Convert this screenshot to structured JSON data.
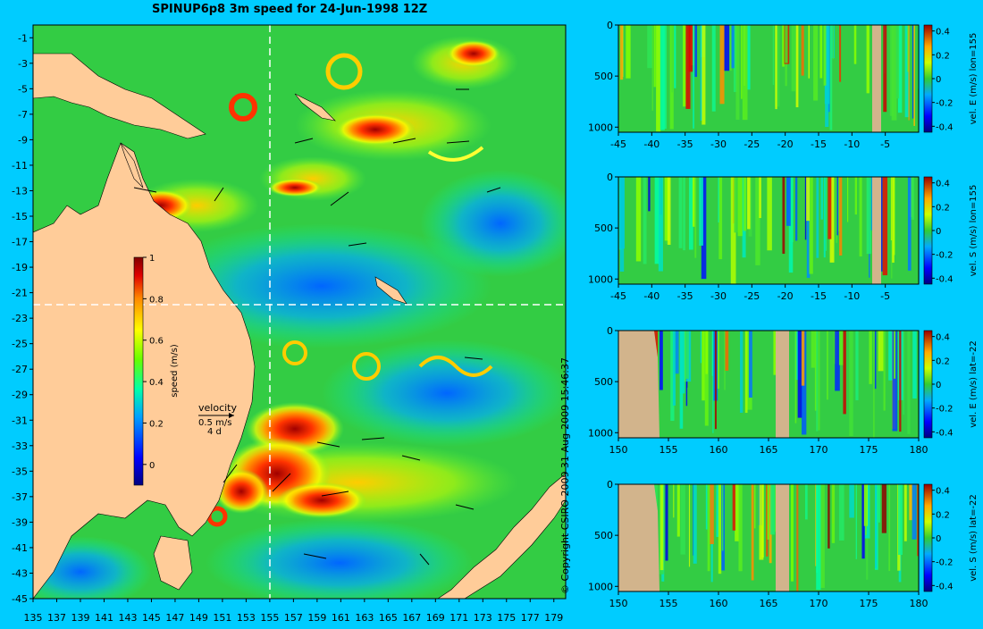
{
  "title": "SPINUP6p8 3m speed for 24-Jun-1998 12Z",
  "copyright": "© Copyright CSIRO 2009   31-Aug-2009 15:46:37",
  "colors": {
    "background": "#00ccff",
    "land": "#ffcc99",
    "section_land": "#d2b48c",
    "ocean_base": "#33cc33"
  },
  "chart_data": [
    {
      "type": "heatmap",
      "name": "speed map",
      "title": "SPINUP6p8 3m speed for 24-Jun-1998 12Z",
      "x_ticks": [
        "135",
        "137",
        "139",
        "141",
        "143",
        "145",
        "147",
        "149",
        "151",
        "153",
        "155",
        "157",
        "159",
        "161",
        "163",
        "165",
        "167",
        "169",
        "171",
        "173",
        "175",
        "177",
        "179"
      ],
      "y_ticks": [
        "-1",
        "-3",
        "-5",
        "-7",
        "-9",
        "-11",
        "-13",
        "-15",
        "-17",
        "-19",
        "-21",
        "-23",
        "-25",
        "-27",
        "-29",
        "-31",
        "-33",
        "-35",
        "-37",
        "-39",
        "-41",
        "-43",
        "-45"
      ],
      "xlim": [
        135,
        180
      ],
      "ylim": [
        -45,
        0
      ],
      "colorbar": {
        "label": "speed (m/s)",
        "ticks": [
          "1",
          "0.8",
          "0.6",
          "0.4",
          "0.2",
          "0"
        ],
        "range": [
          -0.1,
          1
        ]
      },
      "velocity_key": {
        "label": "velocity",
        "scale": "0.5 m/s",
        "interval": "4 d"
      },
      "section_lines": {
        "lon": 155,
        "lat": -22
      }
    },
    {
      "type": "heatmap",
      "name": "vel E section lon=155",
      "x_ticks": [
        "-45",
        "-40",
        "-35",
        "-30",
        "-25",
        "-20",
        "-15",
        "-10",
        "-5"
      ],
      "y_ticks": [
        "0",
        "500",
        "1000"
      ],
      "xlim": [
        -45,
        0
      ],
      "ylim": [
        1050,
        0
      ],
      "colorbar": {
        "label": "vel. E (m/s) lon=155",
        "ticks": [
          "0.4",
          "0.2",
          "0",
          "-0.2",
          "-0.4"
        ],
        "range": [
          -0.45,
          0.45
        ]
      }
    },
    {
      "type": "heatmap",
      "name": "vel S section lon=155",
      "x_ticks": [
        "-45",
        "-40",
        "-35",
        "-30",
        "-25",
        "-20",
        "-15",
        "-10",
        "-5"
      ],
      "y_ticks": [
        "0",
        "500",
        "1000"
      ],
      "xlim": [
        -45,
        0
      ],
      "ylim": [
        1050,
        0
      ],
      "colorbar": {
        "label": "vel. S (m/s) lon=155",
        "ticks": [
          "0.4",
          "0.2",
          "0",
          "-0.2",
          "-0.4"
        ],
        "range": [
          -0.45,
          0.45
        ]
      }
    },
    {
      "type": "heatmap",
      "name": "vel E section lat=-22",
      "x_ticks": [
        "150",
        "155",
        "160",
        "165",
        "170",
        "175",
        "180"
      ],
      "y_ticks": [
        "0",
        "500",
        "1000"
      ],
      "xlim": [
        150,
        180
      ],
      "ylim": [
        1050,
        0
      ],
      "colorbar": {
        "label": "vel. E (m/s) lat=-22",
        "ticks": [
          "0.4",
          "0.2",
          "0",
          "-0.2",
          "-0.4"
        ],
        "range": [
          -0.45,
          0.45
        ]
      }
    },
    {
      "type": "heatmap",
      "name": "vel S section lat=-22",
      "x_ticks": [
        "150",
        "155",
        "160",
        "165",
        "170",
        "175",
        "180"
      ],
      "y_ticks": [
        "0",
        "500",
        "1000"
      ],
      "xlim": [
        150,
        180
      ],
      "ylim": [
        1050,
        0
      ],
      "colorbar": {
        "label": "vel. S (m/s) lat=-22",
        "ticks": [
          "0.4",
          "0.2",
          "0",
          "-0.2",
          "-0.4"
        ],
        "range": [
          -0.45,
          0.45
        ]
      }
    }
  ]
}
